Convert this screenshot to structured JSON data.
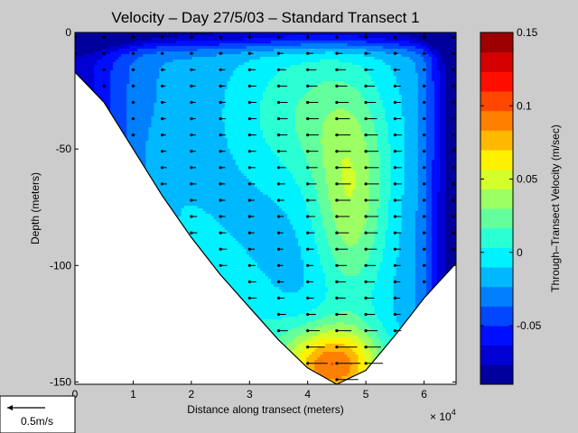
{
  "chart_data": {
    "type": "heatmap",
    "title": "Velocity – Day 27/5/03 – Standard Transect 1",
    "xlabel": "Distance along transect (meters)",
    "ylabel": "Depth (meters)",
    "x_multiplier_label": "× 10",
    "x_multiplier_exponent": "4",
    "xlim": [
      0,
      65500
    ],
    "ylim": [
      -151,
      0
    ],
    "x_ticks": [
      {
        "value": 0,
        "label": "0"
      },
      {
        "value": 10000,
        "label": "1"
      },
      {
        "value": 20000,
        "label": "2"
      },
      {
        "value": 30000,
        "label": "3"
      },
      {
        "value": 40000,
        "label": "4"
      },
      {
        "value": 50000,
        "label": "5"
      },
      {
        "value": 60000,
        "label": "6"
      }
    ],
    "y_ticks": [
      {
        "value": 0,
        "label": "0"
      },
      {
        "value": -50,
        "label": "-50"
      },
      {
        "value": -100,
        "label": "-100"
      },
      {
        "value": -150,
        "label": "-150"
      }
    ],
    "colorbar": {
      "label": "Through–Transect Velocity (m/sec)",
      "range": [
        -0.09,
        0.15
      ],
      "levels": 18,
      "ticks": [
        {
          "value": 0.15,
          "label": "0.15"
        },
        {
          "value": 0.1,
          "label": "0.1"
        },
        {
          "value": 0.05,
          "label": "0.05"
        },
        {
          "value": 0,
          "label": "0"
        },
        {
          "value": -0.05,
          "label": "-0.05"
        }
      ]
    },
    "bottom_profile": [
      [
        0,
        -17
      ],
      [
        5000,
        -30
      ],
      [
        10000,
        -50
      ],
      [
        15000,
        -70
      ],
      [
        20000,
        -88
      ],
      [
        25000,
        -104
      ],
      [
        30000,
        -118
      ],
      [
        35000,
        -132
      ],
      [
        40000,
        -144
      ],
      [
        45000,
        -151
      ],
      [
        50000,
        -145
      ],
      [
        55000,
        -130
      ],
      [
        60000,
        -114
      ],
      [
        65500,
        -99
      ]
    ],
    "velocity_model": {
      "deep_core": {
        "x": 44500,
        "y": -143,
        "amplitude": 0.105,
        "sigma_x": 8500,
        "sigma_y": 17
      },
      "mid_lobe": {
        "x": 47500,
        "y": -75,
        "amplitude": 0.055,
        "sigma_x": 6500,
        "sigma_y": 45
      },
      "surface_wedge": {
        "x": 40000,
        "y": -35,
        "amplitude": 0.035,
        "sigma_x": 13000,
        "sigma_y": 35
      },
      "bottom_tilt": {
        "x": 0,
        "y": 0,
        "amplitude": 0.01,
        "sigma_x": 0,
        "sigma_y": 0
      },
      "base": -0.02
    },
    "arrow_columns_x": [
      0,
      5000,
      10000,
      15000,
      20000,
      25000,
      30000,
      35000,
      40000,
      45000,
      50000,
      55000,
      60000,
      65000
    ],
    "arrow_spacing_depth": 7
  },
  "legend": {
    "scale_label": "0.5m/s"
  }
}
